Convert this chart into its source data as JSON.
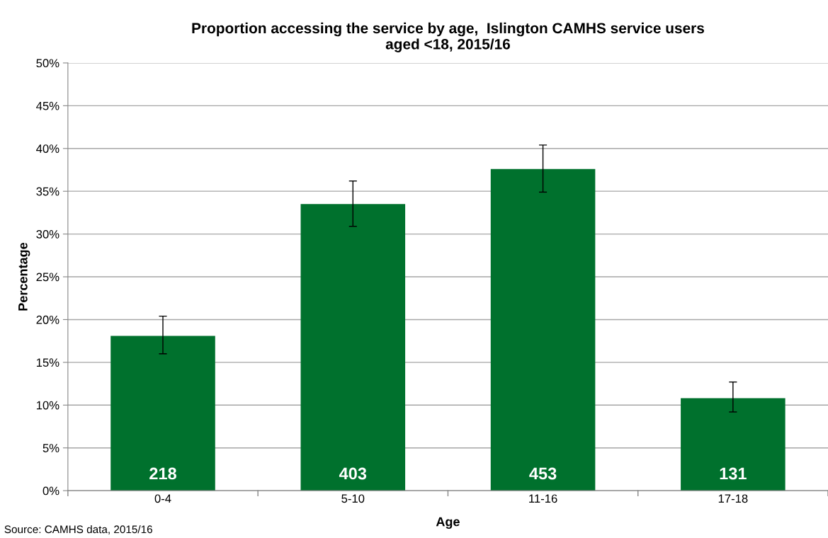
{
  "chart_data": {
    "type": "bar",
    "title": "Proportion accessing the service by age,  Islington CAMHS service users\naged <18, 2015/16",
    "xlabel": "Age",
    "ylabel": "Percentage",
    "categories": [
      "0-4",
      "5-10",
      "11-16",
      "17-18"
    ],
    "values": [
      18.1,
      33.5,
      37.6,
      10.8
    ],
    "errors": [
      [
        16.0,
        20.4
      ],
      [
        30.9,
        36.2
      ],
      [
        34.9,
        40.4
      ],
      [
        9.2,
        12.7
      ]
    ],
    "color": "#00712d",
    "ylim": [
      0,
      50
    ],
    "yticks": [
      {
        "value": 0,
        "label": "0%"
      },
      {
        "value": 5,
        "label": "5%"
      },
      {
        "value": 10,
        "label": "10%"
      },
      {
        "value": 15,
        "label": "15%"
      },
      {
        "value": 20,
        "label": "20%"
      },
      {
        "value": 25,
        "label": "25%"
      },
      {
        "value": 30,
        "label": "30%"
      },
      {
        "value": 35,
        "label": "35%"
      },
      {
        "value": 40,
        "label": "40%"
      },
      {
        "value": 45,
        "label": "45%"
      },
      {
        "value": 50,
        "label": "50%"
      }
    ],
    "grid": "y",
    "legend": false,
    "annotations": [
      "Source: CAMHS data, 2015/16",
      "218",
      "403",
      "453",
      "131"
    ]
  }
}
